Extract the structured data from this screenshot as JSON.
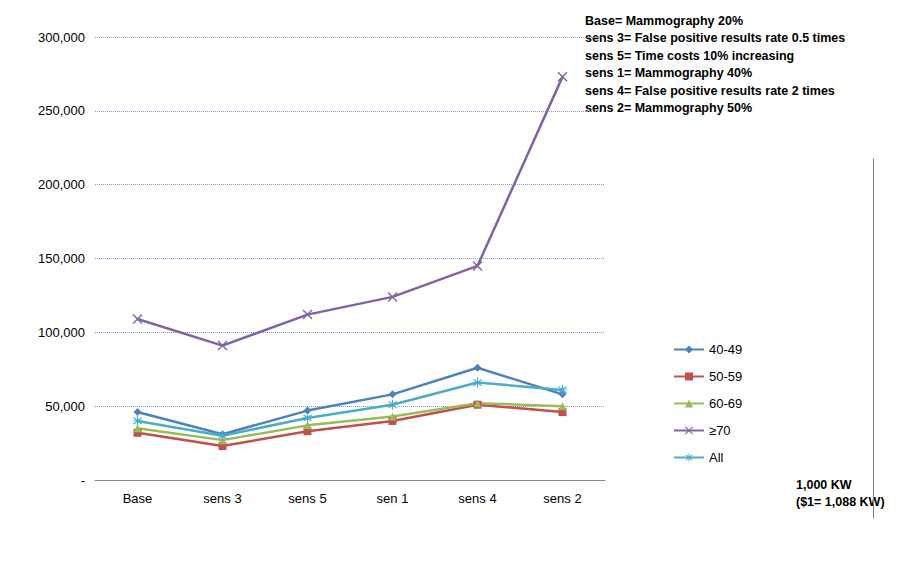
{
  "chart_data": {
    "type": "line",
    "categories": [
      "Base",
      "sens 3",
      "sens 5",
      "sen 1",
      "sens 4",
      "sens 2"
    ],
    "series": [
      {
        "name": "40-49",
        "color": "#4f81bd",
        "marker": "diamond",
        "values": [
          46000,
          31000,
          47000,
          58000,
          76000,
          58000
        ]
      },
      {
        "name": "50-59",
        "color": "#c0504d",
        "marker": "square",
        "values": [
          32000,
          23000,
          33000,
          40000,
          51000,
          46000
        ]
      },
      {
        "name": "60-69",
        "color": "#9bbb59",
        "marker": "triangle",
        "values": [
          35000,
          27000,
          37000,
          43000,
          52000,
          50000
        ]
      },
      {
        "name": "≥70",
        "color": "#8064a2",
        "marker": "x",
        "values": [
          109000,
          91000,
          112000,
          124000,
          145000,
          273000
        ]
      },
      {
        "name": "All",
        "color": "#4bacc6",
        "marker": "star",
        "values": [
          40000,
          30000,
          42000,
          51000,
          66000,
          61000
        ]
      }
    ],
    "ylim": [
      0,
      300000
    ],
    "yticks": [
      {
        "value": 0,
        "label": "-"
      },
      {
        "value": 50000,
        "label": "50,000"
      },
      {
        "value": 100000,
        "label": "100,000"
      },
      {
        "value": 150000,
        "label": "150,000"
      },
      {
        "value": 200000,
        "label": "200,000"
      },
      {
        "value": 250000,
        "label": "250,000"
      },
      {
        "value": 300000,
        "label": "300,000"
      }
    ],
    "grid": true,
    "legend": "right",
    "annotations": [
      [
        "Base= Mammography 20%",
        "sens 3= False positive results rate 0.5 times",
        "sens 5= Time costs 10% increasing",
        "sens 1= Mammography 40%",
        "sens 4= False positive results rate 2 times",
        "sens 2= Mammography 50%"
      ],
      [
        "1,000 KW",
        "($1= 1,088 KW)"
      ]
    ]
  }
}
